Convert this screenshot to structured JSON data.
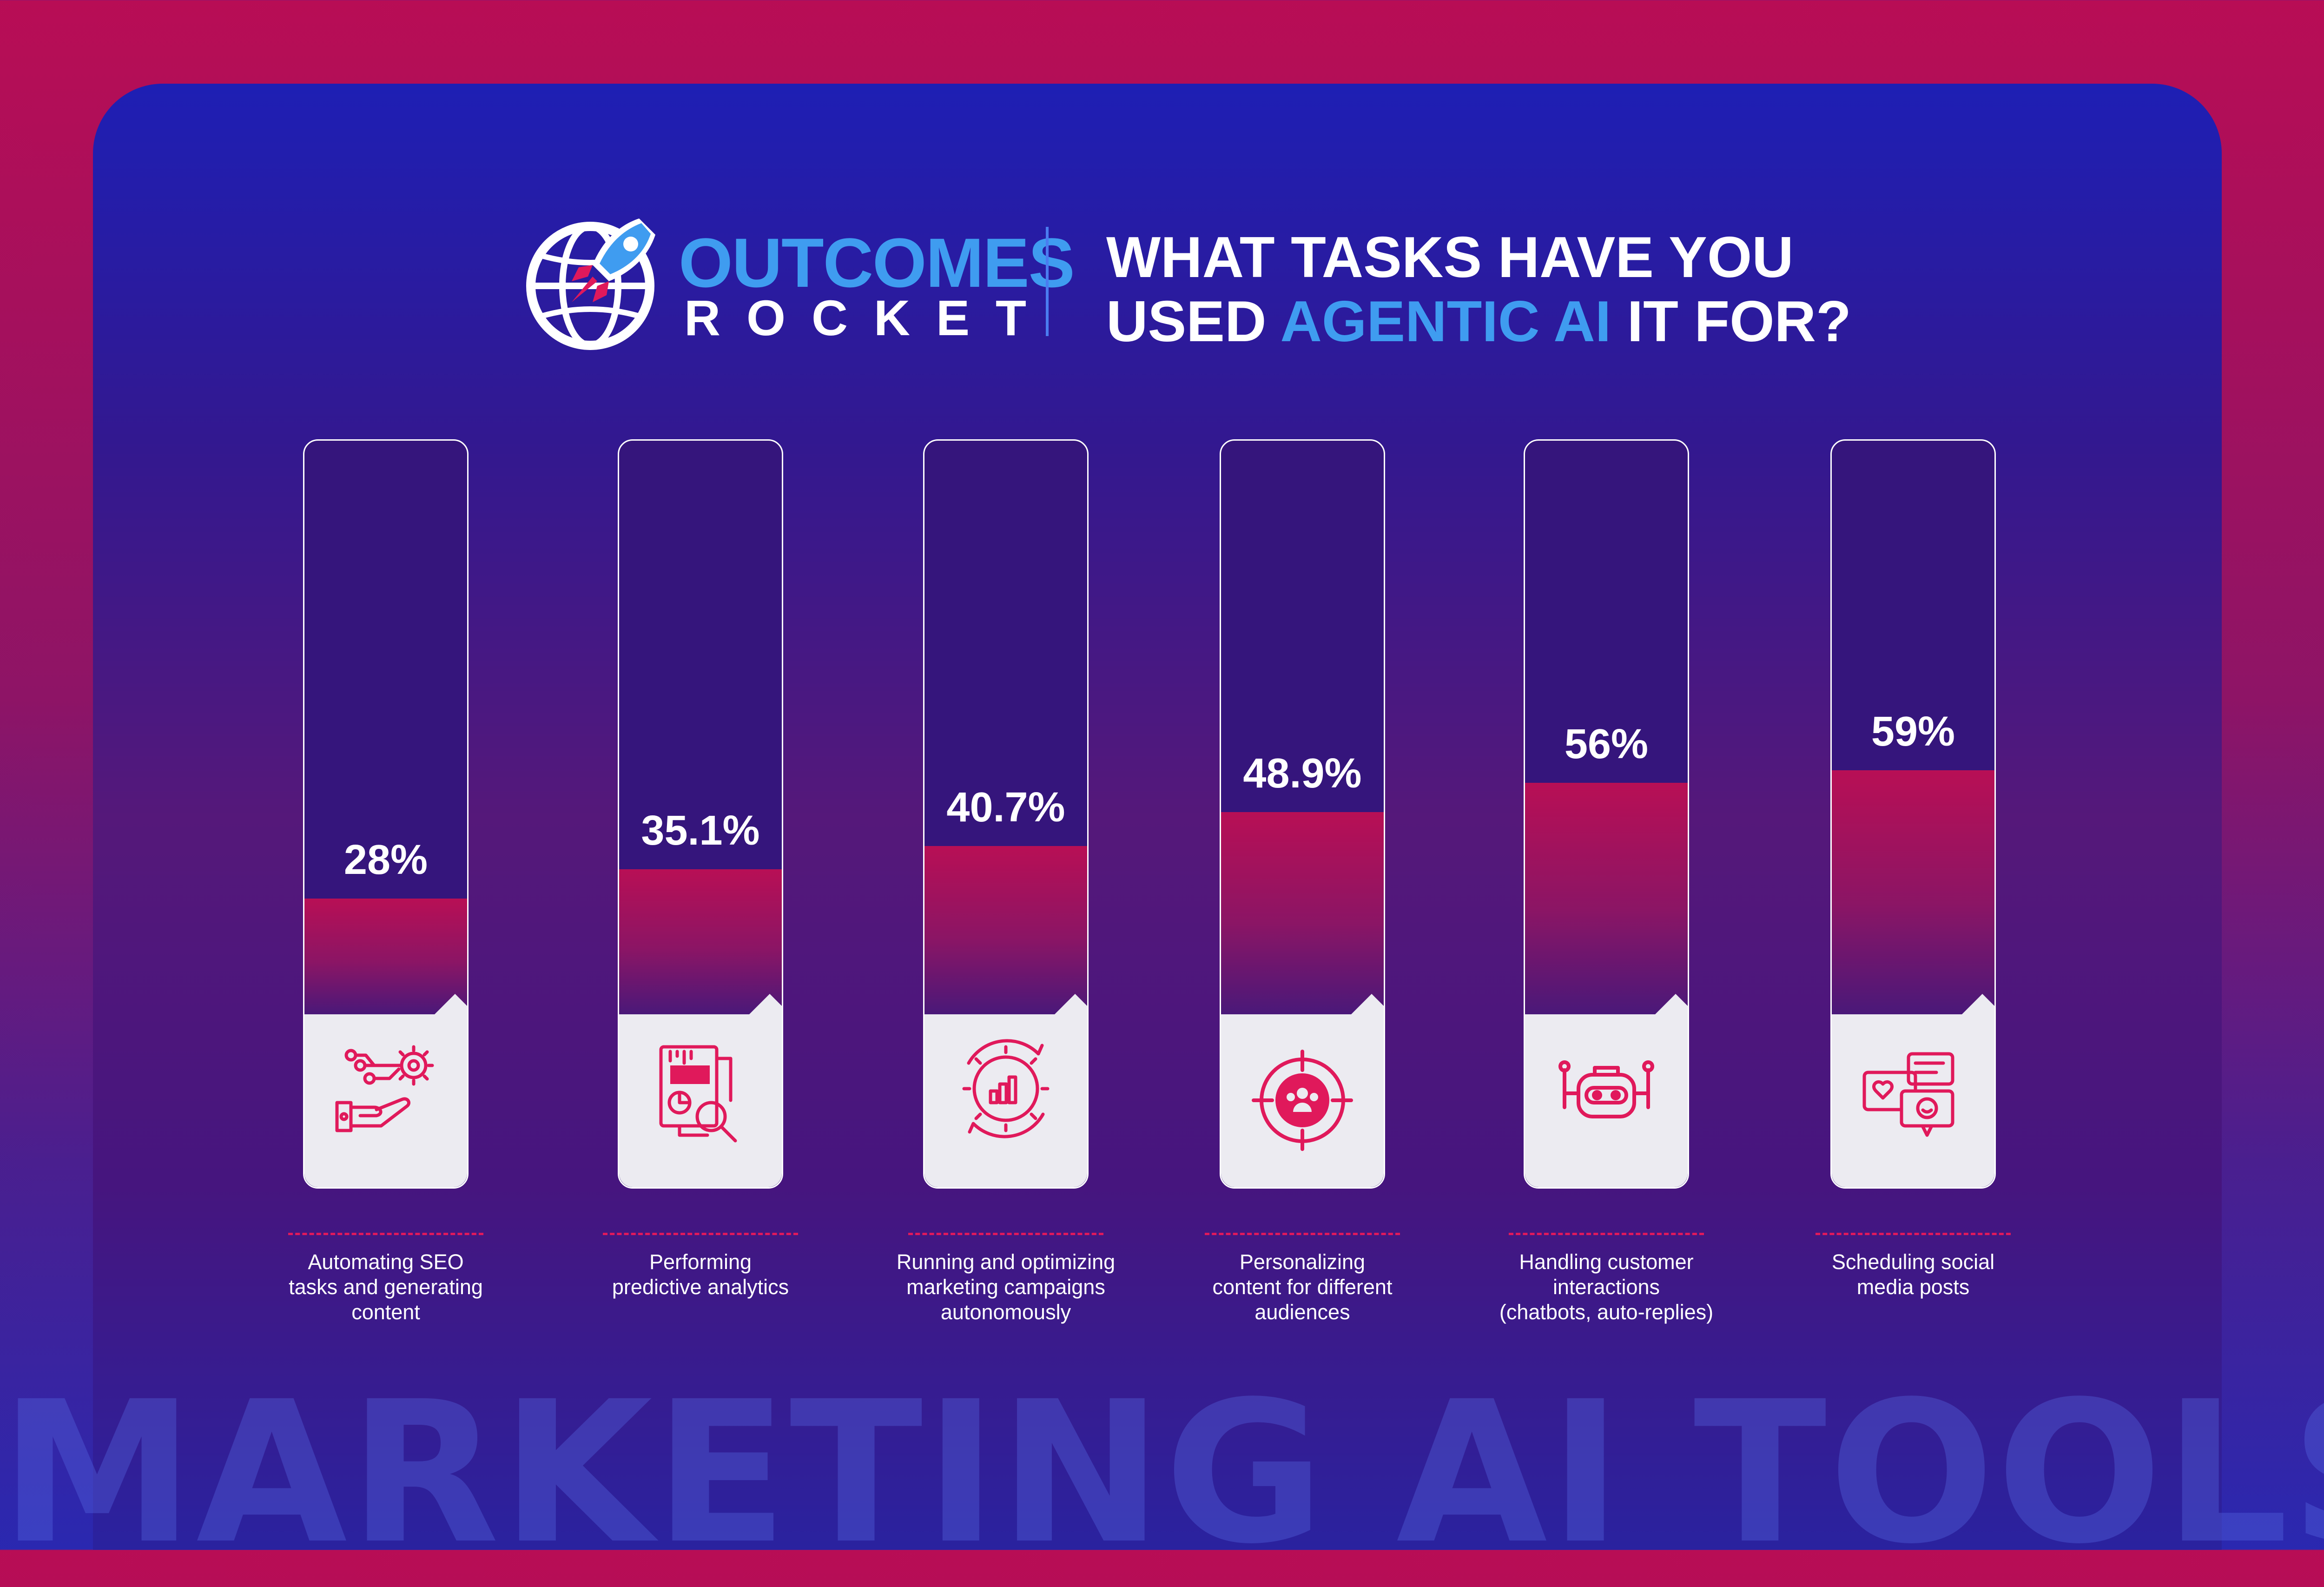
{
  "brand": {
    "name_top": "OUTCOMES",
    "name_bottom": "ROCKET"
  },
  "title": {
    "line1": "WHAT TASKS HAVE YOU",
    "line2_pre": "USED ",
    "line2_highlight": "AGENTIC AI",
    "line2_post": " IT FOR?"
  },
  "watermark": "MARKETING AI TOOLS",
  "colors": {
    "accent": "#3f9cf0",
    "bar_fill": "#b80f55",
    "icon": "#e0195b",
    "background_top": "#b80d55",
    "card": "#1e1fb4"
  },
  "chart_data": {
    "type": "bar",
    "title": "WHAT TASKS HAVE YOU USED AGENTIC AI IT FOR?",
    "categories": [
      "Automating SEO tasks and generating content",
      "Performing predictive analytics",
      "Running and optimizing marketing campaigns autonomously",
      "Personalizing content for different audiences",
      "Handling customer interactions (chatbots, auto-replies)",
      "Scheduling social media posts"
    ],
    "values": [
      28,
      35.1,
      40.7,
      48.9,
      56,
      59
    ],
    "value_labels": [
      "28%",
      "35.1%",
      "40.7%",
      "48.9%",
      "56%",
      "59%"
    ],
    "label_lines": [
      [
        "Automating SEO",
        "tasks and generating",
        "content"
      ],
      [
        "Performing",
        "predictive analytics"
      ],
      [
        "Running and optimizing",
        "marketing campaigns",
        "autonomously"
      ],
      [
        "Personalizing",
        "content for different",
        "audiences"
      ],
      [
        "Handling customer",
        "interactions",
        "(chatbots, auto-replies)"
      ],
      [
        "Scheduling social",
        "media posts"
      ]
    ],
    "icons": [
      "robot-hand-gears-icon",
      "analytics-report-icon",
      "campaign-cycle-icon",
      "target-audience-icon",
      "chatbot-icon",
      "social-chat-icon"
    ],
    "unit": "%",
    "ylim": [
      0,
      100
    ],
    "grid": false,
    "legend": "none"
  }
}
